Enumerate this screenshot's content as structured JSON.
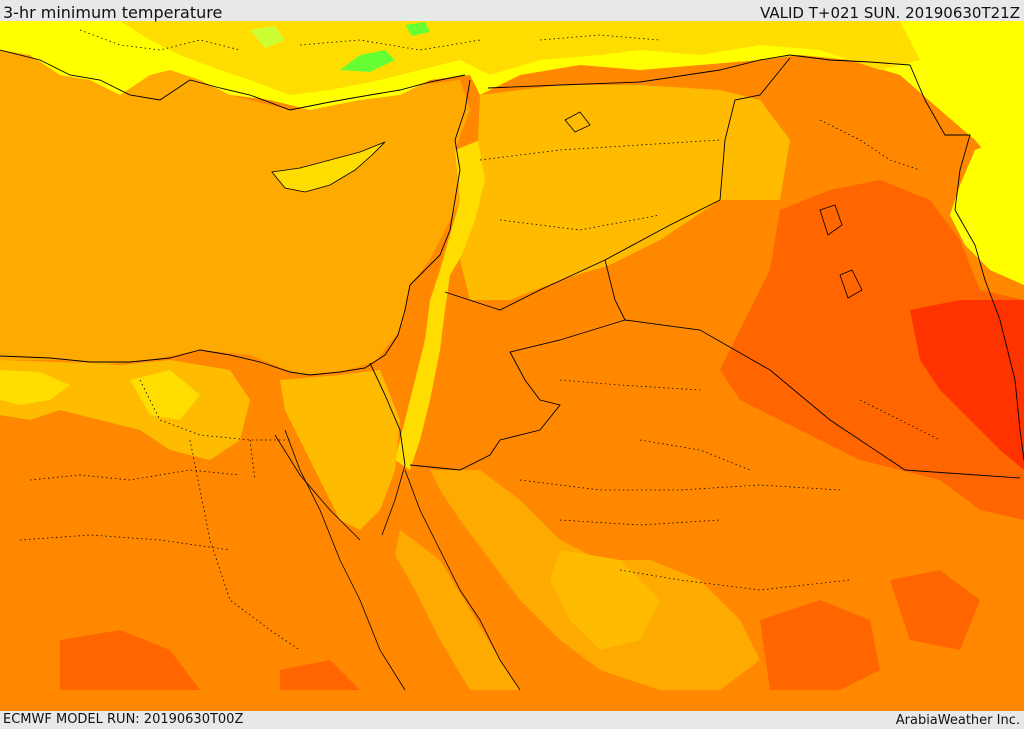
{
  "header": {
    "title": "3-hr minimum temperature",
    "valid": "VALID T+021 SUN. 20190630T21Z"
  },
  "footer": {
    "model_run": "ECMWF MODEL RUN: 20190630T00Z",
    "credit": "ArabiaWeather Inc."
  },
  "palette": {
    "green": "#66ff33",
    "light_green": "#ccff33",
    "yellow": "#ffff00",
    "gold": "#ffdd00",
    "light_orange": "#ffbb00",
    "orange": "#ffaa00",
    "dark_orange": "#ff8800",
    "red_orange": "#ff6600",
    "red": "#ff3300"
  },
  "layers": {
    "borders": "black solid lines",
    "admin_boundaries": "black dotted lines"
  }
}
